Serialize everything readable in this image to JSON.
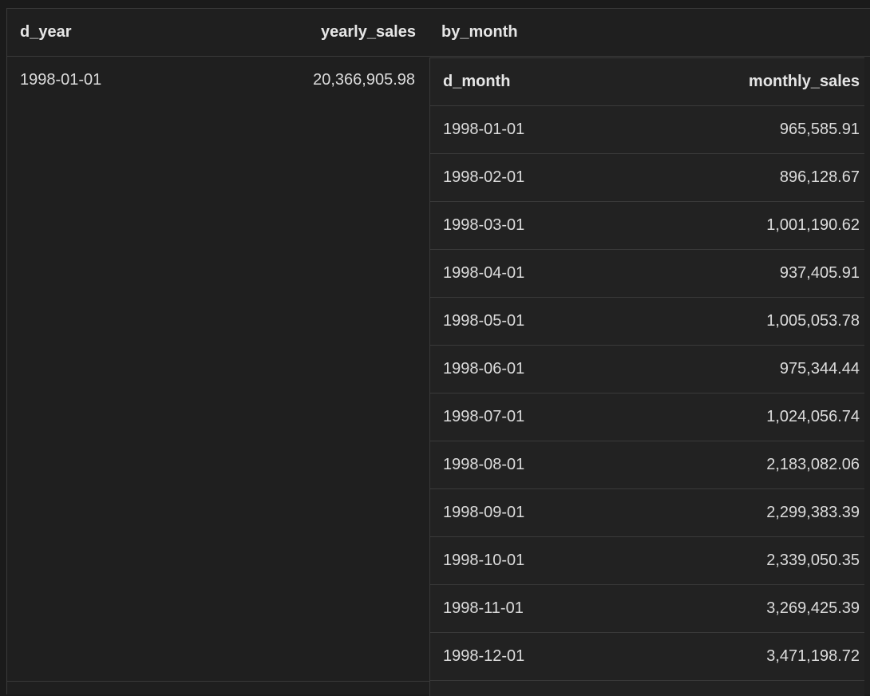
{
  "outer_table": {
    "columns": [
      "d_year",
      "yearly_sales",
      "by_month"
    ],
    "row": {
      "d_year": "1998-01-01",
      "yearly_sales": "20,366,905.98"
    }
  },
  "inner_table": {
    "columns": [
      "d_month",
      "monthly_sales"
    ],
    "rows": [
      {
        "d_month": "1998-01-01",
        "monthly_sales": "965,585.91"
      },
      {
        "d_month": "1998-02-01",
        "monthly_sales": "896,128.67"
      },
      {
        "d_month": "1998-03-01",
        "monthly_sales": "1,001,190.62"
      },
      {
        "d_month": "1998-04-01",
        "monthly_sales": "937,405.91"
      },
      {
        "d_month": "1998-05-01",
        "monthly_sales": "1,005,053.78"
      },
      {
        "d_month": "1998-06-01",
        "monthly_sales": "975,344.44"
      },
      {
        "d_month": "1998-07-01",
        "monthly_sales": "1,024,056.74"
      },
      {
        "d_month": "1998-08-01",
        "monthly_sales": "2,183,082.06"
      },
      {
        "d_month": "1998-09-01",
        "monthly_sales": "2,299,383.39"
      },
      {
        "d_month": "1998-10-01",
        "monthly_sales": "2,339,050.35"
      },
      {
        "d_month": "1998-11-01",
        "monthly_sales": "3,269,425.39"
      },
      {
        "d_month": "1998-12-01",
        "monthly_sales": "3,471,198.72"
      }
    ]
  }
}
